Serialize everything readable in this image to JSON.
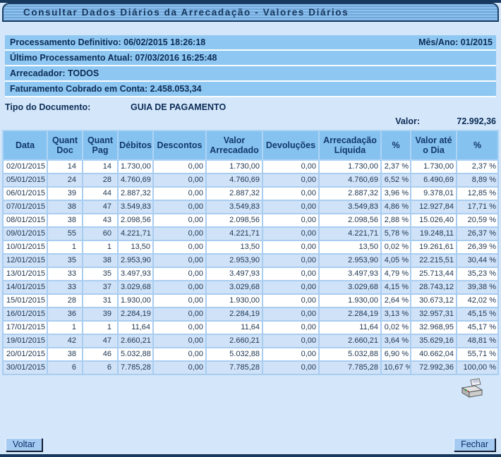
{
  "title": "Consultar Dados Diários da Arrecadação - Valores Diários",
  "info": {
    "processamento_definitivo": "Processamento Definitivo: 06/02/2015 18:26:18",
    "mes_ano": "Mês/Ano: 01/2015",
    "ultimo_processamento": "Último Processamento Atual: 07/03/2016 16:25:48",
    "arrecadador": "Arrecadador: TODOS",
    "faturamento": "Faturamento Cobrado em Conta: 2.458.053,34",
    "tipo_documento_label": "Tipo do Documento:",
    "tipo_documento_value": "GUIA DE PAGAMENTO",
    "valor_label": "Valor:",
    "valor_value": "72.992,36"
  },
  "table": {
    "columns": [
      "Data",
      "Quant Doc",
      "Quant Pag",
      "Débitos",
      "Descontos",
      "Valor Arrecadado",
      "Devoluções",
      "Arrecadação Líquida",
      "%",
      "Valor até o Dia",
      "%"
    ],
    "rows": [
      [
        "02/01/2015",
        "14",
        "14",
        "1.730,00",
        "0,00",
        "1.730,00",
        "0,00",
        "1.730,00",
        "2,37 %",
        "1.730,00",
        "2,37 %"
      ],
      [
        "05/01/2015",
        "24",
        "28",
        "4.760,69",
        "0,00",
        "4.760,69",
        "0,00",
        "4.760,69",
        "6,52 %",
        "6.490,69",
        "8,89 %"
      ],
      [
        "06/01/2015",
        "39",
        "44",
        "2.887,32",
        "0,00",
        "2.887,32",
        "0,00",
        "2.887,32",
        "3,96 %",
        "9.378,01",
        "12,85 %"
      ],
      [
        "07/01/2015",
        "38",
        "47",
        "3.549,83",
        "0,00",
        "3.549,83",
        "0,00",
        "3.549,83",
        "4,86 %",
        "12.927,84",
        "17,71 %"
      ],
      [
        "08/01/2015",
        "38",
        "43",
        "2.098,56",
        "0,00",
        "2.098,56",
        "0,00",
        "2.098,56",
        "2,88 %",
        "15.026,40",
        "20,59 %"
      ],
      [
        "09/01/2015",
        "55",
        "60",
        "4.221,71",
        "0,00",
        "4.221,71",
        "0,00",
        "4.221,71",
        "5,78 %",
        "19.248,11",
        "26,37 %"
      ],
      [
        "10/01/2015",
        "1",
        "1",
        "13,50",
        "0,00",
        "13,50",
        "0,00",
        "13,50",
        "0,02 %",
        "19.261,61",
        "26,39 %"
      ],
      [
        "12/01/2015",
        "35",
        "38",
        "2.953,90",
        "0,00",
        "2.953,90",
        "0,00",
        "2.953,90",
        "4,05 %",
        "22.215,51",
        "30,44 %"
      ],
      [
        "13/01/2015",
        "33",
        "35",
        "3.497,93",
        "0,00",
        "3.497,93",
        "0,00",
        "3.497,93",
        "4,79 %",
        "25.713,44",
        "35,23 %"
      ],
      [
        "14/01/2015",
        "33",
        "37",
        "3.029,68",
        "0,00",
        "3.029,68",
        "0,00",
        "3.029,68",
        "4,15 %",
        "28.743,12",
        "39,38 %"
      ],
      [
        "15/01/2015",
        "28",
        "31",
        "1.930,00",
        "0,00",
        "1.930,00",
        "0,00",
        "1.930,00",
        "2,64 %",
        "30.673,12",
        "42,02 %"
      ],
      [
        "16/01/2015",
        "36",
        "39",
        "2.284,19",
        "0,00",
        "2.284,19",
        "0,00",
        "2.284,19",
        "3,13 %",
        "32.957,31",
        "45,15 %"
      ],
      [
        "17/01/2015",
        "1",
        "1",
        "11,64",
        "0,00",
        "11,64",
        "0,00",
        "11,64",
        "0,02 %",
        "32.968,95",
        "45,17 %"
      ],
      [
        "19/01/2015",
        "42",
        "47",
        "2.660,21",
        "0,00",
        "2.660,21",
        "0,00",
        "2.660,21",
        "3,64 %",
        "35.629,16",
        "48,81 %"
      ],
      [
        "20/01/2015",
        "38",
        "46",
        "5.032,88",
        "0,00",
        "5.032,88",
        "0,00",
        "5.032,88",
        "6,90 %",
        "40.662,04",
        "55,71 %"
      ],
      [
        "30/01/2015",
        "6",
        "6",
        "7.785,28",
        "0,00",
        "7.785,28",
        "0,00",
        "7.785,28",
        "10,67 %",
        "72.992,36",
        "100,00 %"
      ]
    ]
  },
  "icons": {
    "printer": "printer-icon"
  },
  "footer": {
    "voltar_label": "Voltar",
    "fechar_label": "Fechar"
  },
  "colors": {
    "page_bg": "#d3e6fa",
    "navy_bar": "#17395e",
    "strip_bg": "#8ec7f1",
    "table_header_bg": "#85c2f0",
    "row_alt_bg": "#cfe2f8",
    "cell_border": "#a9cdf1",
    "text_navy": "#0c2c55",
    "button_bg": "#a6cbf2"
  }
}
